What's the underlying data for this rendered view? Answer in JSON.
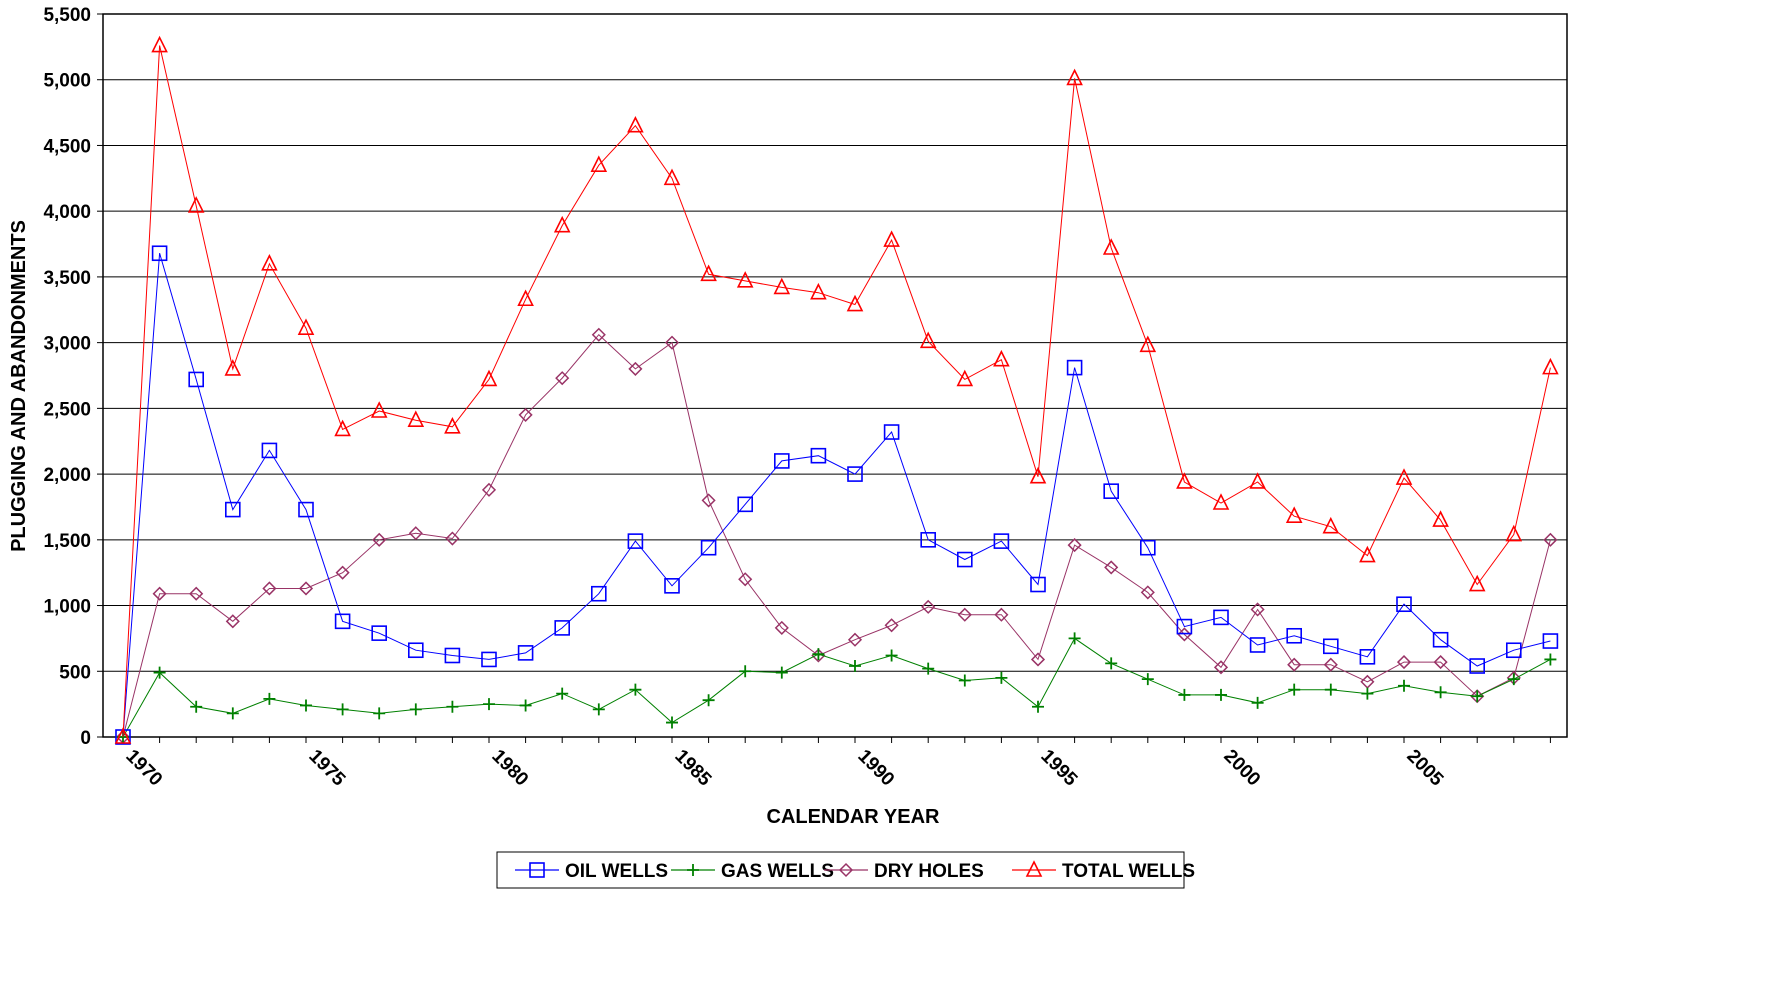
{
  "chart_data": {
    "type": "line",
    "xlabel": "CALENDAR YEAR",
    "ylabel": "PLUGGING AND ABANDONMENTS",
    "ylim": [
      0,
      5500
    ],
    "yticks": [
      0,
      500,
      1000,
      1500,
      2000,
      2500,
      3000,
      3500,
      4000,
      4500,
      5000,
      5500
    ],
    "ytick_labels": [
      "0",
      "500",
      "1,000",
      "1,500",
      "2,000",
      "2,500",
      "3,000",
      "3,500",
      "4,000",
      "4,500",
      "5,000",
      "5,500"
    ],
    "xticks": [
      1970,
      1975,
      1980,
      1985,
      1990,
      1995,
      2000,
      2005
    ],
    "xtick_labels": [
      "1970",
      "1975",
      "1980",
      "1985",
      "1990",
      "1995",
      "2000",
      "2005"
    ],
    "grid": "horizontal",
    "legend_position": "bottom",
    "x": [
      1970,
      1971,
      1972,
      1973,
      1974,
      1975,
      1976,
      1977,
      1978,
      1979,
      1980,
      1981,
      1982,
      1983,
      1984,
      1985,
      1986,
      1987,
      1988,
      1989,
      1990,
      1991,
      1992,
      1993,
      1994,
      1995,
      1996,
      1997,
      1998,
      1999,
      2000,
      2001,
      2002,
      2003,
      2004,
      2005,
      2006,
      2007,
      2008,
      2009
    ],
    "series": [
      {
        "name": "OIL WELLS",
        "color": "#0000ff",
        "marker": "square",
        "values": [
          0,
          3680,
          2720,
          1730,
          2180,
          1730,
          880,
          790,
          660,
          620,
          590,
          640,
          830,
          1090,
          1490,
          1150,
          1440,
          1770,
          2100,
          2140,
          2000,
          2320,
          1500,
          1350,
          1490,
          1160,
          2810,
          1870,
          1440,
          840,
          910,
          700,
          770,
          690,
          610,
          1010,
          740,
          540,
          660,
          730
        ]
      },
      {
        "name": "GAS WELLS",
        "color": "#008000",
        "marker": "plus",
        "values": [
          0,
          490,
          230,
          180,
          290,
          240,
          210,
          180,
          210,
          230,
          250,
          240,
          330,
          210,
          360,
          110,
          280,
          500,
          490,
          630,
          540,
          620,
          520,
          430,
          450,
          230,
          750,
          560,
          440,
          320,
          320,
          260,
          360,
          360,
          330,
          390,
          340,
          310,
          440,
          590
        ]
      },
      {
        "name": "DRY HOLES",
        "color": "#993366",
        "marker": "diamond",
        "values": [
          0,
          1090,
          1090,
          880,
          1130,
          1130,
          1250,
          1500,
          1550,
          1510,
          1880,
          2450,
          2730,
          3060,
          2800,
          3000,
          1800,
          1200,
          830,
          620,
          740,
          850,
          990,
          930,
          930,
          590,
          1460,
          1290,
          1100,
          780,
          530,
          970,
          550,
          550,
          420,
          570,
          570,
          310,
          450,
          1500
        ]
      },
      {
        "name": "TOTAL WELLS",
        "color": "#ff0000",
        "marker": "triangle",
        "values": [
          0,
          5260,
          4040,
          2800,
          3600,
          3110,
          2340,
          2480,
          2410,
          2360,
          2720,
          3330,
          3890,
          4350,
          4650,
          4250,
          3520,
          3470,
          3420,
          3380,
          3290,
          3780,
          3010,
          2720,
          2870,
          1980,
          5010,
          3720,
          2980,
          1940,
          1780,
          1940,
          1680,
          1600,
          1380,
          1970,
          1650,
          1160,
          1540,
          2810
        ]
      }
    ]
  }
}
